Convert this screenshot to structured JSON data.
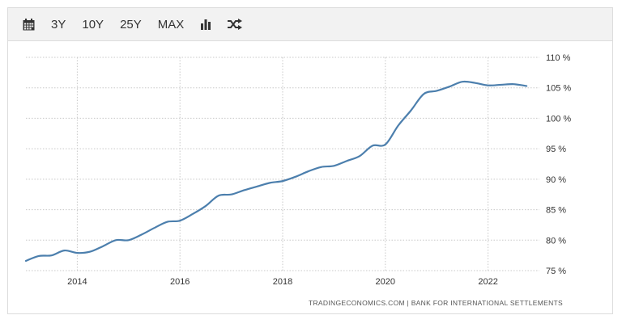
{
  "toolbar": {
    "buttons": [
      {
        "id": "calendar",
        "icon": "calendar-icon",
        "label": ""
      },
      {
        "id": "3y",
        "label": "3Y"
      },
      {
        "id": "10y",
        "label": "10Y"
      },
      {
        "id": "25y",
        "label": "25Y"
      },
      {
        "id": "max",
        "label": "MAX"
      },
      {
        "id": "bar",
        "icon": "bar-chart-icon",
        "label": ""
      },
      {
        "id": "shuffle",
        "icon": "shuffle-icon",
        "label": ""
      }
    ]
  },
  "source_text": "TRADINGECONOMICS.COM  |  BANK FOR INTERNATIONAL SETTLEMENTS",
  "colors": {
    "line": "#4c7fad",
    "grid": "#c8c8c8",
    "text": "#333333"
  },
  "chart_data": {
    "type": "line",
    "title": "",
    "xlabel": "",
    "ylabel": "",
    "x_ticks": [
      "2014",
      "2016",
      "2018",
      "2020",
      "2022"
    ],
    "y_ticks": [
      "110 %",
      "105 %",
      "100 %",
      "95 %",
      "90 %",
      "85 %",
      "80 %",
      "75 %"
    ],
    "xlim": [
      2013.0,
      2023.0
    ],
    "ylim": [
      75,
      110
    ],
    "grid": true,
    "legend": "none",
    "series": [
      {
        "name": "",
        "x": [
          2013.0,
          2013.25,
          2013.5,
          2013.75,
          2014.0,
          2014.25,
          2014.5,
          2014.75,
          2015.0,
          2015.25,
          2015.5,
          2015.75,
          2016.0,
          2016.25,
          2016.5,
          2016.75,
          2017.0,
          2017.25,
          2017.5,
          2017.75,
          2018.0,
          2018.25,
          2018.5,
          2018.75,
          2019.0,
          2019.25,
          2019.5,
          2019.75,
          2020.0,
          2020.25,
          2020.5,
          2020.75,
          2021.0,
          2021.25,
          2021.5,
          2021.75,
          2022.0,
          2022.25,
          2022.5,
          2022.75
        ],
        "y": [
          76.6,
          77.4,
          77.5,
          78.3,
          77.9,
          78.1,
          79.0,
          80.0,
          80.0,
          80.9,
          82.0,
          83.0,
          83.2,
          84.3,
          85.6,
          87.3,
          87.5,
          88.2,
          88.8,
          89.4,
          89.7,
          90.4,
          91.3,
          92.0,
          92.2,
          93.0,
          93.8,
          95.5,
          95.7,
          98.8,
          101.3,
          104.0,
          104.5,
          105.2,
          106.0,
          105.8,
          105.4,
          105.5,
          105.6,
          105.3
        ]
      }
    ]
  }
}
